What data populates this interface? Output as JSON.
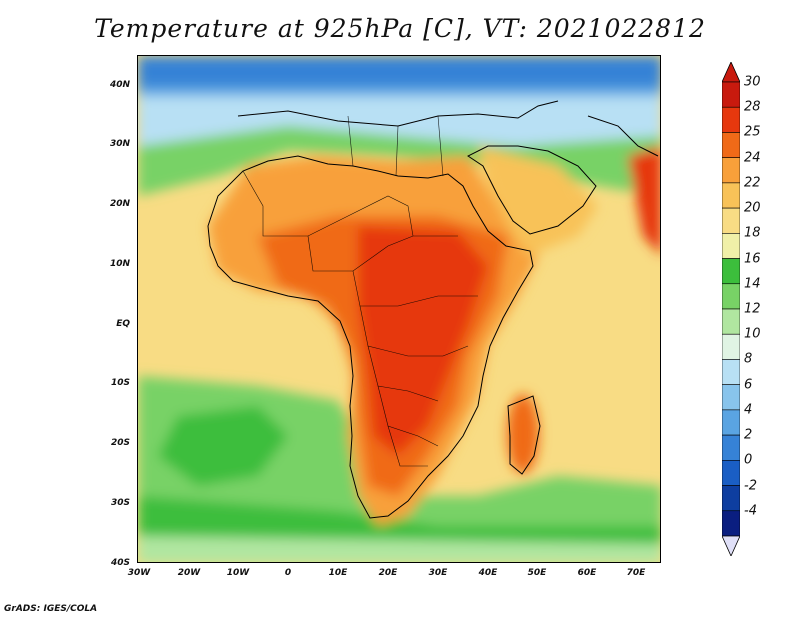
{
  "title": "Temperature at 925hPa [C], VT: 2021022812",
  "y_labels": [
    "40N",
    "30N",
    "20N",
    "10N",
    "EQ",
    "10S",
    "20S",
    "30S",
    "40S"
  ],
  "x_labels": [
    "30W",
    "20W",
    "10W",
    "0",
    "10E",
    "20E",
    "30E",
    "40E",
    "50E",
    "60E",
    "70E"
  ],
  "colorbar": {
    "labels": [
      "30",
      "28",
      "25",
      "24",
      "22",
      "20",
      "18",
      "16",
      "14",
      "12",
      "10",
      "8",
      "6",
      "4",
      "2",
      "0",
      "-2",
      "-4"
    ],
    "colors": [
      "#c81a0e",
      "#e6380e",
      "#f06a18",
      "#f8a03a",
      "#f8c258",
      "#f8dc84",
      "#f0f0a8",
      "#3cbe3c",
      "#78d266",
      "#b0e6a0",
      "#e0f4e4",
      "#b8e0f4",
      "#88c4ec",
      "#5aa4e2",
      "#3682d6",
      "#1a5ec4",
      "#0e3ea0",
      "#0a1e80"
    ],
    "under_color": "#e0e0f8",
    "over_color": "#c81a0e"
  },
  "footer": "GrADS: IGES/COLA"
}
